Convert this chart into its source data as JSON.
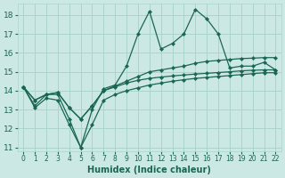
{
  "xlabel": "Humidex (Indice chaleur)",
  "bg_color": "#cce8e4",
  "grid_color": "#aad4cc",
  "line_color": "#1a6655",
  "xlim": [
    -0.5,
    22.5
  ],
  "ylim": [
    10.8,
    18.6
  ],
  "yticks": [
    11,
    12,
    13,
    14,
    15,
    16,
    17,
    18
  ],
  "xticks": [
    0,
    1,
    2,
    3,
    4,
    5,
    6,
    7,
    8,
    9,
    10,
    11,
    12,
    13,
    14,
    15,
    16,
    17,
    18,
    19,
    20,
    21,
    22
  ],
  "line_main": [
    14.2,
    13.2,
    13.8,
    13.8,
    12.5,
    11.0,
    13.0,
    14.1,
    14.3,
    15.3,
    17.0,
    18.2,
    16.2,
    16.5,
    17.0,
    18.3,
    17.8,
    17.0,
    15.2,
    15.3,
    15.3,
    15.5,
    15.1
  ],
  "line_upper": [
    14.2,
    13.5,
    13.8,
    13.9,
    13.1,
    12.5,
    13.2,
    14.0,
    14.25,
    14.5,
    14.75,
    15.0,
    15.1,
    15.2,
    15.3,
    15.45,
    15.55,
    15.6,
    15.65,
    15.7,
    15.72,
    15.75,
    15.75
  ],
  "line_mid": [
    14.2,
    13.5,
    13.8,
    13.9,
    13.1,
    12.5,
    13.2,
    14.0,
    14.2,
    14.4,
    14.55,
    14.65,
    14.72,
    14.78,
    14.83,
    14.88,
    14.92,
    14.96,
    15.0,
    15.05,
    15.08,
    15.1,
    15.1
  ],
  "line_lower": [
    14.2,
    13.1,
    13.6,
    13.5,
    12.2,
    11.0,
    12.2,
    13.5,
    13.8,
    14.0,
    14.15,
    14.3,
    14.4,
    14.5,
    14.58,
    14.65,
    14.7,
    14.75,
    14.8,
    14.85,
    14.9,
    14.95,
    14.95
  ]
}
